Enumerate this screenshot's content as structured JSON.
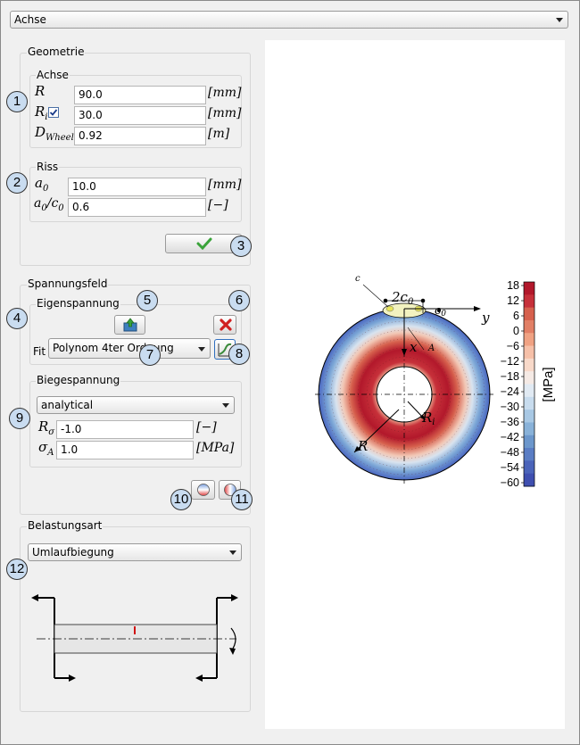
{
  "top_select": {
    "value": "Achse"
  },
  "geometrie": {
    "title": "Geometrie",
    "achse": {
      "title": "Achse",
      "rows": [
        {
          "sym": "R",
          "sub": "",
          "value": "90.0",
          "unit": "[mm]"
        },
        {
          "sym": "R",
          "sub": "i",
          "value": "30.0",
          "unit": "[mm]"
        },
        {
          "sym": "D",
          "sub": "Wheel",
          "value": "0.92",
          "unit": "[m]"
        }
      ]
    },
    "riss": {
      "title": "Riss",
      "rows": [
        {
          "label": "a",
          "sub": "0",
          "value": "10.0",
          "unit": "[mm]"
        },
        {
          "label": "a",
          "sub": "0",
          "label2": "/c",
          "sub2": "0",
          "value": "0.6",
          "unit": "[−]"
        }
      ]
    }
  },
  "spannungsfeld": {
    "title": "Spannungsfeld",
    "eigen": {
      "title": "Eigenspannung",
      "fit_label": "Fit",
      "fit_value": "Polynom 4ter Ordnung"
    },
    "biege": {
      "title": "Biegespannung",
      "mode": "analytical",
      "rows": [
        {
          "sym": "R",
          "sub": "σ",
          "value": "-1.0",
          "unit": "[−]"
        },
        {
          "sym": "σ",
          "sub": "A",
          "value": "1.0",
          "unit": "[MPa]"
        }
      ]
    }
  },
  "belastungsart": {
    "title": "Belastungsart",
    "value": "Umlaufbiegung"
  },
  "badges": [
    "1",
    "2",
    "3",
    "4",
    "5",
    "6",
    "7",
    "8",
    "9",
    "10",
    "11",
    "12"
  ],
  "plot": {
    "labels": {
      "c": "c",
      "two_c0": "2c",
      "two_c0_sub": "0",
      "c0_sub": "0",
      "c0": "c",
      "y": "y",
      "x": "x",
      "A": "A",
      "R": "R",
      "Ri": "R",
      "Ri_sub": "i"
    },
    "colorbar": {
      "label": "[MPa]",
      "ticks": [
        "18",
        "12",
        "6",
        "0",
        "−6",
        "−12",
        "−18",
        "−24",
        "−30",
        "−36",
        "−42",
        "−48",
        "−54",
        "−60"
      ],
      "colors": [
        "#b2182b",
        "#c6303a",
        "#d6604d",
        "#e28066",
        "#f0a283",
        "#f6c0a8",
        "#f8d9c9",
        "#f5eae5",
        "#e1eaf3",
        "#c8dcee",
        "#a8c8e4",
        "#89b2d9",
        "#6c97cc",
        "#5a7dc4",
        "#4b64ba",
        "#3f4fb0"
      ],
      "vmax": 18,
      "vmin": -60
    }
  },
  "icons": {
    "check": "checkmark-icon",
    "import": "import-icon",
    "delete": "delete-icon",
    "edit": "edit-curve-icon"
  }
}
